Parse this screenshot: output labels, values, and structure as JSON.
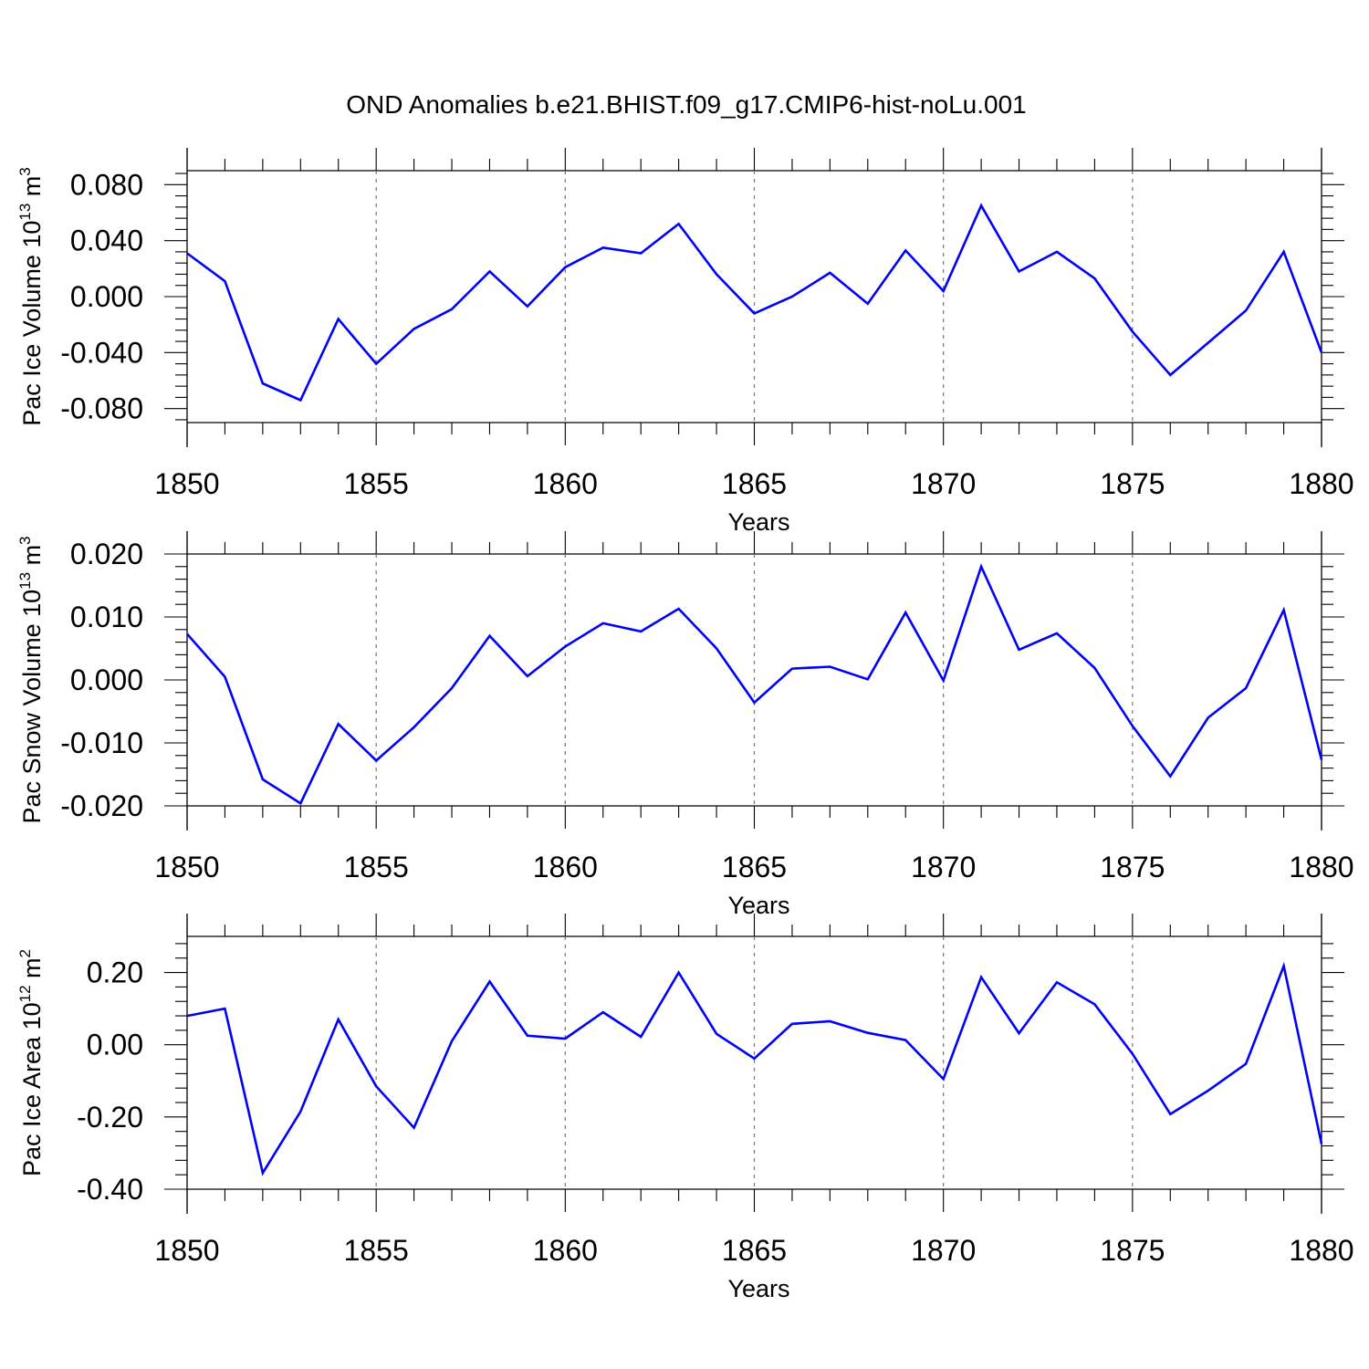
{
  "title": "OND Anomalies b.e21.BHIST.f09_g17.CMIP6-hist-noLu.001",
  "colors": {
    "series": "#0000ff",
    "axes": "#000000",
    "grid": "#777777"
  },
  "chart_data": [
    {
      "type": "line",
      "xlabel": "Years",
      "ylabel": {
        "text": "Pac Ice Volume 10",
        "exponent": "13",
        "unit": " m",
        "unit_exponent": "3"
      },
      "xlim": [
        1850,
        1880
      ],
      "ylim": [
        -0.09,
        0.09
      ],
      "xticks": [
        "1850",
        "1855",
        "1860",
        "1865",
        "1870",
        "1875",
        "1880"
      ],
      "yticks": [
        {
          "value": 0.08,
          "label": "0.080"
        },
        {
          "value": 0.04,
          "label": "0.040"
        },
        {
          "value": 0.0,
          "label": "0.000"
        },
        {
          "value": -0.04,
          "label": "-0.040"
        },
        {
          "value": -0.08,
          "label": "-0.080"
        }
      ],
      "grid": "dashed vertical at major x ticks",
      "x": [
        1850,
        1851,
        1852,
        1853,
        1854,
        1855,
        1856,
        1857,
        1858,
        1859,
        1860,
        1861,
        1862,
        1863,
        1864,
        1865,
        1866,
        1867,
        1868,
        1869,
        1870,
        1871,
        1872,
        1873,
        1874,
        1875,
        1876,
        1877,
        1878,
        1879,
        1880
      ],
      "values": [
        0.031,
        0.011,
        -0.062,
        -0.074,
        -0.016,
        -0.048,
        -0.023,
        -0.009,
        0.018,
        -0.007,
        0.021,
        0.035,
        0.031,
        0.052,
        0.016,
        -0.012,
        0.0,
        0.017,
        -0.005,
        0.033,
        0.004,
        0.065,
        0.018,
        0.032,
        0.013,
        -0.025,
        -0.056,
        -0.033,
        -0.01,
        0.032,
        -0.04
      ]
    },
    {
      "type": "line",
      "xlabel": "Years",
      "ylabel": {
        "text": "Pac Snow Volume 10",
        "exponent": "13",
        "unit": " m",
        "unit_exponent": "3"
      },
      "xlim": [
        1850,
        1880
      ],
      "ylim": [
        -0.02,
        0.02
      ],
      "xticks": [
        "1850",
        "1855",
        "1860",
        "1865",
        "1870",
        "1875",
        "1880"
      ],
      "yticks": [
        {
          "value": 0.02,
          "label": "0.020"
        },
        {
          "value": 0.01,
          "label": "0.010"
        },
        {
          "value": 0.0,
          "label": "0.000"
        },
        {
          "value": -0.01,
          "label": "-0.010"
        },
        {
          "value": -0.02,
          "label": "-0.020"
        }
      ],
      "grid": "dashed vertical at major x ticks",
      "x": [
        1850,
        1851,
        1852,
        1853,
        1854,
        1855,
        1856,
        1857,
        1858,
        1859,
        1860,
        1861,
        1862,
        1863,
        1864,
        1865,
        1866,
        1867,
        1868,
        1869,
        1870,
        1871,
        1872,
        1873,
        1874,
        1875,
        1876,
        1877,
        1878,
        1879,
        1880
      ],
      "values": [
        0.0073,
        0.0005,
        -0.0158,
        -0.0196,
        -0.007,
        -0.0128,
        -0.0075,
        -0.0013,
        0.007,
        0.0006,
        0.0053,
        0.009,
        0.0077,
        0.0113,
        0.005,
        -0.0036,
        0.0018,
        0.0021,
        0.0001,
        0.0107,
        -0.0001,
        0.018,
        0.0048,
        0.0074,
        0.0019,
        -0.0073,
        -0.0153,
        -0.006,
        -0.0013,
        0.0111,
        -0.0127
      ]
    },
    {
      "type": "line",
      "xlabel": "Years",
      "ylabel": {
        "text": "Pac Ice Area 10",
        "exponent": "12",
        "unit": " m",
        "unit_exponent": "2"
      },
      "xlim": [
        1850,
        1880
      ],
      "ylim": [
        -0.4,
        0.3
      ],
      "xticks": [
        "1850",
        "1855",
        "1860",
        "1865",
        "1870",
        "1875",
        "1880"
      ],
      "yticks": [
        {
          "value": 0.2,
          "label": "0.20"
        },
        {
          "value": 0.0,
          "label": "0.00"
        },
        {
          "value": -0.2,
          "label": "-0.20"
        },
        {
          "value": -0.4,
          "label": "-0.40"
        }
      ],
      "grid": "dashed vertical at major x ticks",
      "x": [
        1850,
        1851,
        1852,
        1853,
        1854,
        1855,
        1856,
        1857,
        1858,
        1859,
        1860,
        1861,
        1862,
        1863,
        1864,
        1865,
        1866,
        1867,
        1868,
        1869,
        1870,
        1871,
        1872,
        1873,
        1874,
        1875,
        1876,
        1877,
        1878,
        1879,
        1880
      ],
      "values": [
        0.08,
        0.1,
        -0.355,
        -0.185,
        0.07,
        -0.115,
        -0.23,
        0.01,
        0.175,
        0.025,
        0.017,
        0.09,
        0.022,
        0.2,
        0.03,
        -0.038,
        0.058,
        0.065,
        0.033,
        0.013,
        -0.095,
        0.187,
        0.032,
        0.173,
        0.112,
        -0.025,
        -0.192,
        -0.127,
        -0.053,
        0.218,
        -0.275
      ]
    }
  ]
}
